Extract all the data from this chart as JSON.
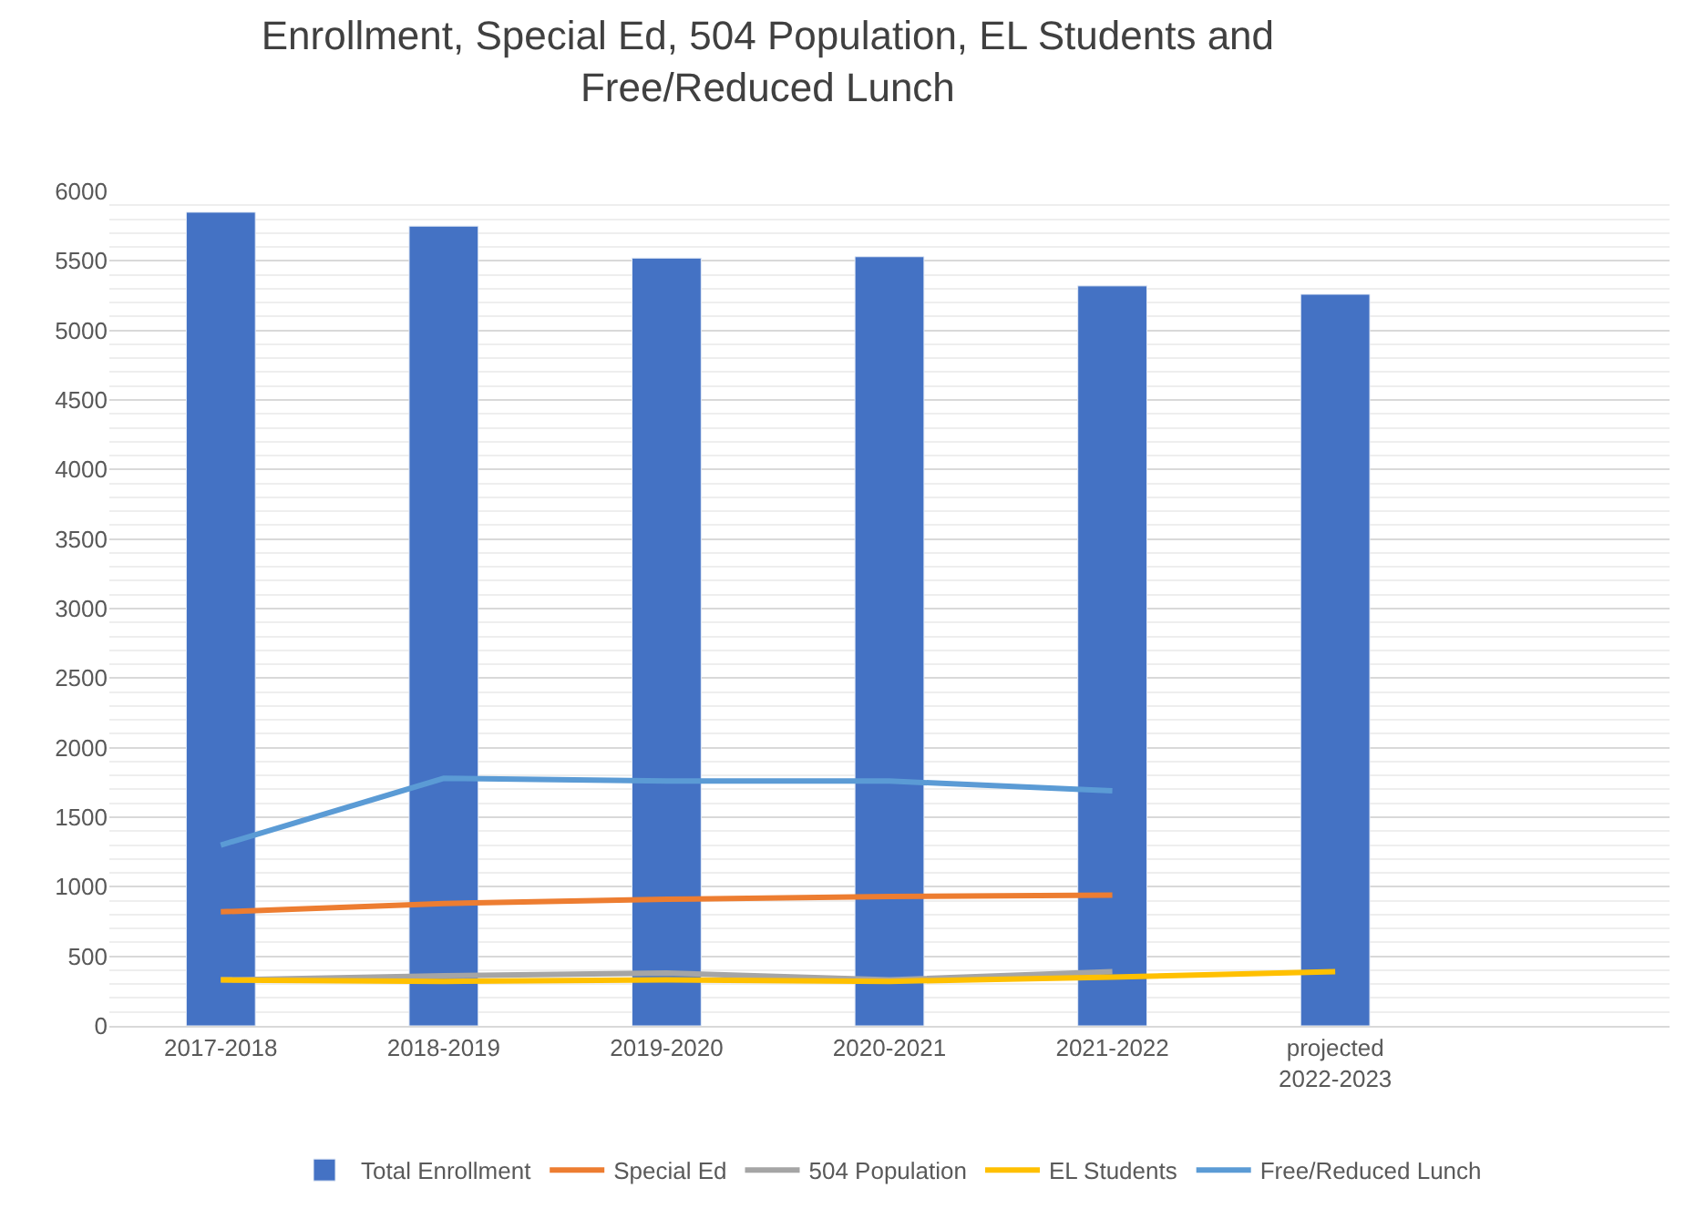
{
  "chart_data": {
    "type": "bar",
    "title": "Enrollment, Special Ed, 504 Population, EL Students and\nFree/Reduced Lunch",
    "categories": [
      "2017-2018",
      "2018-2019",
      "2019-2020",
      "2020-2021",
      "2021-2022",
      "projected\n2022-2023",
      null
    ],
    "series": [
      {
        "name": "Total Enrollment",
        "color": "#4472c4",
        "values": [
          5850,
          5750,
          5520,
          5530,
          5320,
          5260,
          null
        ]
      },
      {
        "name": "Special Ed",
        "type": "line",
        "color": "#ed7d31",
        "values": [
          820,
          880,
          910,
          930,
          940,
          null,
          null
        ]
      },
      {
        "name": "504 Population",
        "type": "line",
        "color": "#a5a5a5",
        "values": [
          330,
          360,
          380,
          330,
          390,
          null,
          null
        ]
      },
      {
        "name": "EL Students",
        "type": "line",
        "color": "#ffc000",
        "values": [
          330,
          320,
          330,
          320,
          350,
          390,
          null
        ]
      },
      {
        "name": "Free/Reduced Lunch",
        "type": "line",
        "color": "#5b9bd5",
        "values": [
          1300,
          1780,
          1760,
          1760,
          1690,
          null,
          null
        ]
      }
    ],
    "ylim": [
      0,
      6000
    ],
    "yticks": [
      0,
      500,
      1000,
      1500,
      2000,
      2500,
      3000,
      3500,
      4000,
      4500,
      5000,
      5500,
      6000
    ],
    "grid": "y",
    "legend": "bottom",
    "marker": "none"
  }
}
